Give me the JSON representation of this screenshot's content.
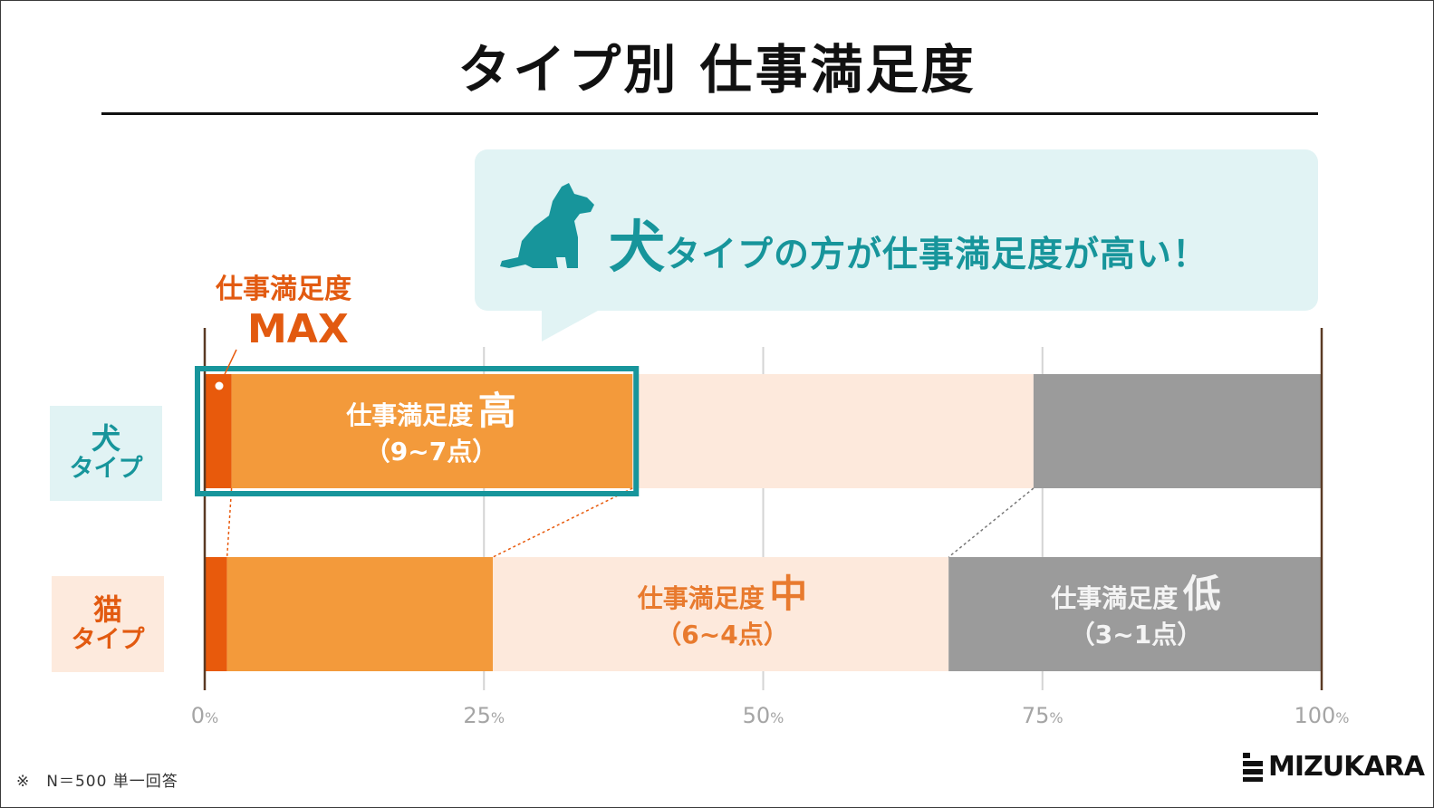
{
  "title": "タイプ別 仕事満足度",
  "callout": {
    "emphasis": "犬",
    "text": "タイプの方が仕事満足度が高い！",
    "icon": "dog-icon"
  },
  "max_label": {
    "line1": "仕事満足度",
    "line2": "MAX"
  },
  "row_labels": {
    "dog": {
      "line1": "犬",
      "line2": "タイプ"
    },
    "cat": {
      "line1": "猫",
      "line2": "タイプ"
    }
  },
  "segment_labels": {
    "high": {
      "main": "仕事満足度",
      "level": "高",
      "range": "（9~7点）"
    },
    "mid": {
      "main": "仕事満足度",
      "level": "中",
      "range": "（6~4点）"
    },
    "low": {
      "main": "仕事満足度",
      "level": "低",
      "range": "（3~1点）"
    }
  },
  "note": "※　N＝500 単一回答",
  "logo": "MIZUKARA",
  "colors": {
    "max": "#e85a0c",
    "high": "#f39a3b",
    "mid": "#fde9dc",
    "low": "#9b9b9b",
    "teal": "#17959b",
    "orange_text": "#e25a10"
  },
  "chart_data": {
    "type": "bar",
    "orientation": "horizontal",
    "stacked": true,
    "title": "タイプ別 仕事満足度",
    "categories": [
      "犬 タイプ",
      "猫 タイプ"
    ],
    "series": [
      {
        "name": "仕事満足度 MAX",
        "values": [
          2.4,
          2.0
        ]
      },
      {
        "name": "仕事満足度 高（9~7点）",
        "values": [
          35.9,
          23.8
        ]
      },
      {
        "name": "仕事満足度 中（6~4点）",
        "values": [
          35.9,
          40.8
        ]
      },
      {
        "name": "仕事満足度 低（3~1点）",
        "values": [
          25.8,
          33.4
        ]
      }
    ],
    "xlim": [
      0,
      100
    ],
    "xticks": [
      {
        "value": 0,
        "num": "0",
        "unit": "%"
      },
      {
        "value": 25,
        "num": "25",
        "unit": "%"
      },
      {
        "value": 50,
        "num": "50",
        "unit": "%"
      },
      {
        "value": 75,
        "num": "75",
        "unit": "%"
      },
      {
        "value": 100,
        "num": "100",
        "unit": "%"
      }
    ],
    "grid": true,
    "highlight": {
      "category": "犬 タイプ",
      "series": [
        "仕事満足度 MAX",
        "仕事満足度 高（9~7点）"
      ]
    }
  }
}
